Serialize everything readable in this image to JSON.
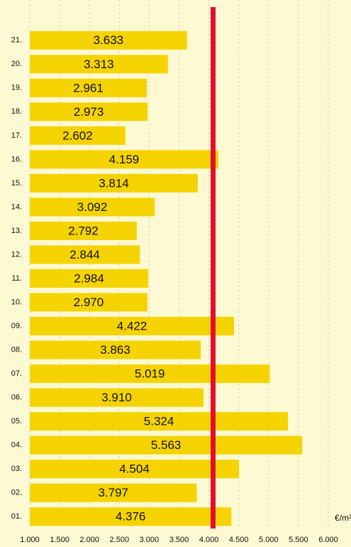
{
  "chart_data": {
    "type": "barh",
    "categories": [
      "21.",
      "20.",
      "19.",
      "18.",
      "17.",
      "16.",
      "15.",
      "14.",
      "13.",
      "12.",
      "11.",
      "10.",
      "09.",
      "08.",
      "07.",
      "06.",
      "05.",
      "04.",
      "03.",
      "02.",
      "01."
    ],
    "values": [
      3633,
      3313,
      2961,
      2973,
      2602,
      4159,
      3814,
      3092,
      2792,
      2844,
      2984,
      2970,
      4422,
      3863,
      5019,
      3910,
      5324,
      5563,
      4504,
      3797,
      4376
    ],
    "value_labels": [
      "3.633",
      "3.313",
      "2.961",
      "2.973",
      "2.602",
      "4.159",
      "3.814",
      "3.092",
      "2.792",
      "2.844",
      "2.984",
      "2.970",
      "4.422",
      "3.863",
      "5.019",
      "3.910",
      "5.324",
      "5.563",
      "4.504",
      "3.797",
      "4.376"
    ],
    "color": "#f5d300",
    "reference_line": {
      "value": 4070,
      "color": "#e0102a"
    },
    "xlabel": "€/m²",
    "xlim": [
      1000,
      6000
    ],
    "xticks": [
      {
        "value": 1000,
        "label": "1.000"
      },
      {
        "value": 1500,
        "label": "1.500"
      },
      {
        "value": 2000,
        "label": "2.000"
      },
      {
        "value": 2500,
        "label": "2.500"
      },
      {
        "value": 3000,
        "label": "3.000"
      },
      {
        "value": 3500,
        "label": "3.500"
      },
      {
        "value": 4000,
        "label": "4.000"
      },
      {
        "value": 4500,
        "label": "4.500"
      },
      {
        "value": 5000,
        "label": "5.000"
      },
      {
        "value": 5500,
        "label": "5.500"
      },
      {
        "value": 6000,
        "label": "6.000"
      }
    ],
    "grid": true
  }
}
